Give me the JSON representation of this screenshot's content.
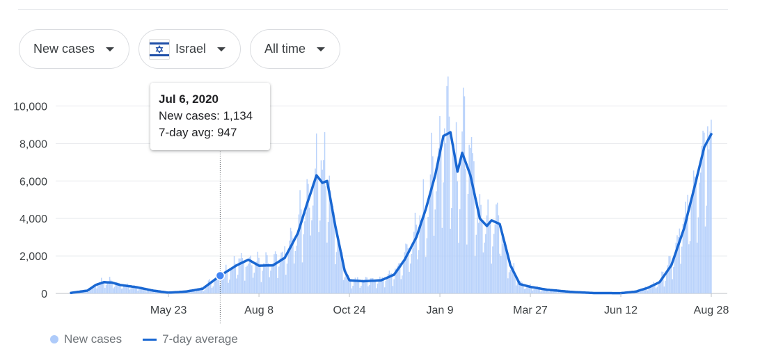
{
  "filters": {
    "metric": "New cases",
    "country": "Israel",
    "range": "All time"
  },
  "tooltip": {
    "date": "Jul 6, 2020",
    "new_cases": "New cases: 1,134",
    "avg": "7-day avg: 947"
  },
  "legend": {
    "bars": "New cases",
    "line": "7-day average"
  },
  "colors": {
    "bars": "#aecbfa",
    "line": "#1967d2",
    "grid": "#e8eaed"
  },
  "chart_data": {
    "type": "bar",
    "title": "",
    "xlabel": "",
    "ylabel": "",
    "ylim": [
      0,
      11500
    ],
    "yticks": [
      0,
      2000,
      4000,
      6000,
      8000,
      10000
    ],
    "ytick_labels": [
      "0",
      "2,000",
      "4,000",
      "6,000",
      "8,000",
      "10,000"
    ],
    "xtick_labels": [
      "May 23",
      "Aug 8",
      "Oct 24",
      "Jan 9",
      "Mar 27",
      "Jun 12",
      "Aug 28"
    ],
    "x_start": "2020-03-01",
    "x_end": "2021-08-28",
    "xtick_dates": [
      "2020-05-23",
      "2020-08-08",
      "2020-10-24",
      "2021-01-09",
      "2021-03-27",
      "2021-06-12",
      "2021-08-28"
    ],
    "highlight": {
      "date": "2020-07-06",
      "new_cases": 1134,
      "avg": 947
    },
    "series": [
      {
        "name": "7-day average",
        "points": [
          [
            "2020-03-01",
            30
          ],
          [
            "2020-03-15",
            150
          ],
          [
            "2020-03-22",
            450
          ],
          [
            "2020-03-29",
            600
          ],
          [
            "2020-04-05",
            580
          ],
          [
            "2020-04-12",
            450
          ],
          [
            "2020-04-26",
            330
          ],
          [
            "2020-05-10",
            150
          ],
          [
            "2020-05-23",
            40
          ],
          [
            "2020-06-07",
            100
          ],
          [
            "2020-06-21",
            250
          ],
          [
            "2020-07-06",
            947
          ],
          [
            "2020-07-20",
            1500
          ],
          [
            "2020-07-30",
            1800
          ],
          [
            "2020-08-08",
            1480
          ],
          [
            "2020-08-20",
            1500
          ],
          [
            "2020-08-30",
            1900
          ],
          [
            "2020-09-10",
            3200
          ],
          [
            "2020-09-18",
            4800
          ],
          [
            "2020-09-26",
            6300
          ],
          [
            "2020-10-01",
            5900
          ],
          [
            "2020-10-05",
            6000
          ],
          [
            "2020-10-12",
            3600
          ],
          [
            "2020-10-20",
            1200
          ],
          [
            "2020-10-24",
            700
          ],
          [
            "2020-11-05",
            650
          ],
          [
            "2020-11-20",
            700
          ],
          [
            "2020-12-01",
            1000
          ],
          [
            "2020-12-10",
            1800
          ],
          [
            "2020-12-20",
            3000
          ],
          [
            "2020-12-28",
            4500
          ],
          [
            "2021-01-05",
            6300
          ],
          [
            "2021-01-12",
            8400
          ],
          [
            "2021-01-18",
            8600
          ],
          [
            "2021-01-24",
            6500
          ],
          [
            "2021-01-28",
            7500
          ],
          [
            "2021-02-04",
            6300
          ],
          [
            "2021-02-12",
            4000
          ],
          [
            "2021-02-18",
            3600
          ],
          [
            "2021-02-22",
            3900
          ],
          [
            "2021-03-01",
            3700
          ],
          [
            "2021-03-10",
            1500
          ],
          [
            "2021-03-18",
            500
          ],
          [
            "2021-03-27",
            350
          ],
          [
            "2021-04-10",
            200
          ],
          [
            "2021-05-01",
            80
          ],
          [
            "2021-05-20",
            20
          ],
          [
            "2021-06-12",
            15
          ],
          [
            "2021-06-25",
            100
          ],
          [
            "2021-07-05",
            300
          ],
          [
            "2021-07-15",
            600
          ],
          [
            "2021-07-25",
            1500
          ],
          [
            "2021-08-05",
            3500
          ],
          [
            "2021-08-15",
            6000
          ],
          [
            "2021-08-22",
            7800
          ],
          [
            "2021-08-28",
            8500
          ]
        ]
      }
    ]
  }
}
